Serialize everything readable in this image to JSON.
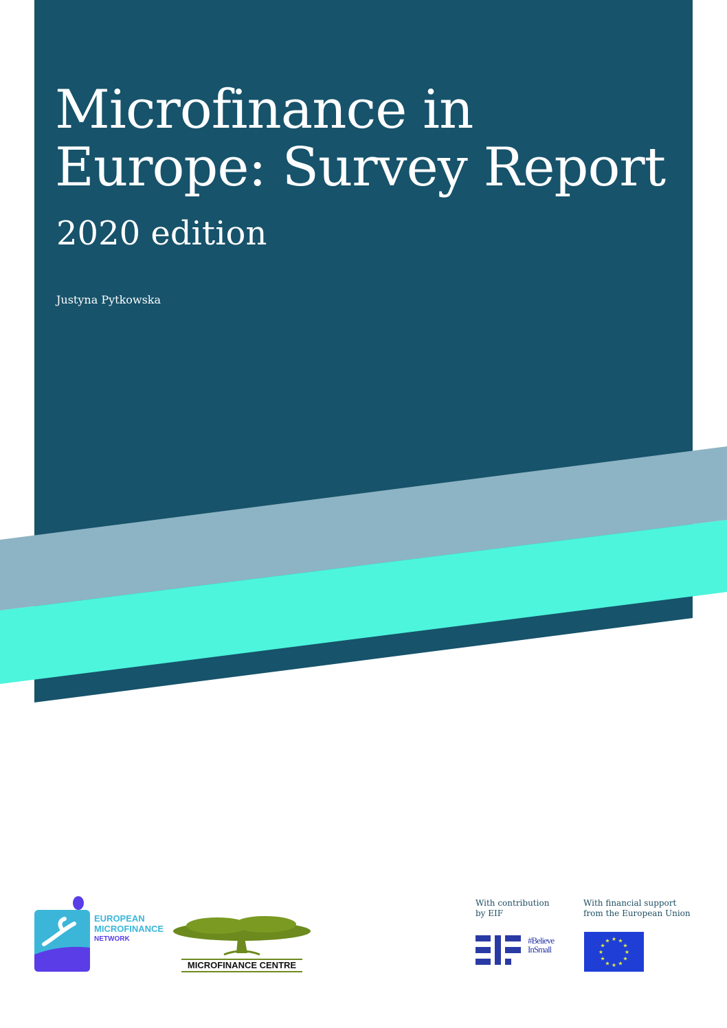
{
  "cover": {
    "title_line1": "Microfinance in",
    "title_line2": "Europe: Survey Report",
    "edition": "2020 edition",
    "author": "Justyna Pytkowska"
  },
  "colors": {
    "dark_block": "#17536b",
    "grey_band": "#8db4c4",
    "teal_band": "#4cf5dc"
  },
  "logos": {
    "emn_line1": "EUROPEAN",
    "emn_line2": "MICROFINANCE",
    "emn_line3": "NETWORK",
    "emn_mark": "emn",
    "mfc": "MICROFINANCE CENTRE",
    "eif_caption_line1": "With contribution",
    "eif_caption_line2": "by EIF",
    "eif_mark": "EIF",
    "eif_tag_line1": "#Believe",
    "eif_tag_line2": "InSmall",
    "eu_caption_line1": "With financial support",
    "eu_caption_line2": "from the European Union"
  }
}
